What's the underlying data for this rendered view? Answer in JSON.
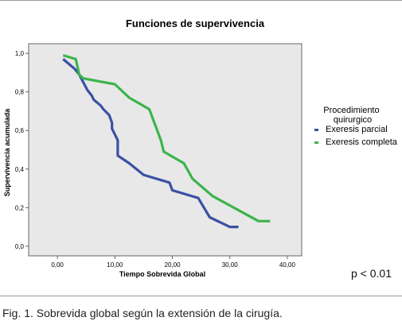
{
  "figure": {
    "p_value": "p < 0.01",
    "caption": "Fig. 1. Sobrevida global según la extensión de la cirugía."
  },
  "chart_data": {
    "type": "line",
    "title": "Funciones de supervivencia",
    "xlabel": "Tiempo Sobrevida Global",
    "ylabel": "Supervivencia acumulada",
    "xlim": [
      -5,
      42.5
    ],
    "ylim": [
      -0.05,
      1.05
    ],
    "x_ticks": [
      0,
      10,
      20,
      30,
      40
    ],
    "x_tick_labels": [
      "0,00",
      "10,00",
      "20,00",
      "30,00",
      "40,00"
    ],
    "y_ticks": [
      0,
      0.2,
      0.4,
      0.6,
      0.8,
      1.0
    ],
    "y_tick_labels": [
      "0,0",
      "0,2",
      "0,4",
      "0,6",
      "0,8",
      "1,0"
    ],
    "grid": false,
    "background": "#e8e8e8",
    "legend": {
      "title": "Procedimiento quirurgico",
      "title_lines": [
        "Procedimiento",
        "quirurgico"
      ],
      "placement": "right"
    },
    "series": [
      {
        "name": "Exeresis parcial",
        "color": "#3a51a3",
        "x": [
          1.0,
          3.0,
          3.8,
          4.5,
          5.2,
          6.0,
          6.3,
          7.5,
          8.0,
          9.0,
          9.5,
          9.5,
          10.5,
          10.5,
          12.5,
          15.0,
          19.5,
          20.0,
          24.5,
          26.5,
          30.0,
          31.5
        ],
        "y": [
          0.97,
          0.92,
          0.89,
          0.85,
          0.81,
          0.78,
          0.76,
          0.73,
          0.71,
          0.68,
          0.64,
          0.61,
          0.55,
          0.47,
          0.43,
          0.37,
          0.33,
          0.29,
          0.25,
          0.15,
          0.1,
          0.1
        ]
      },
      {
        "name": "Exeresis completa",
        "color": "#3cb44b",
        "x": [
          1.0,
          3.2,
          3.8,
          4.5,
          10.0,
          12.5,
          16.0,
          18.0,
          18.5,
          22.0,
          23.5,
          27.0,
          35.0,
          37.0
        ],
        "y": [
          0.99,
          0.97,
          0.89,
          0.87,
          0.84,
          0.77,
          0.71,
          0.55,
          0.49,
          0.43,
          0.35,
          0.26,
          0.13,
          0.13
        ]
      }
    ]
  }
}
